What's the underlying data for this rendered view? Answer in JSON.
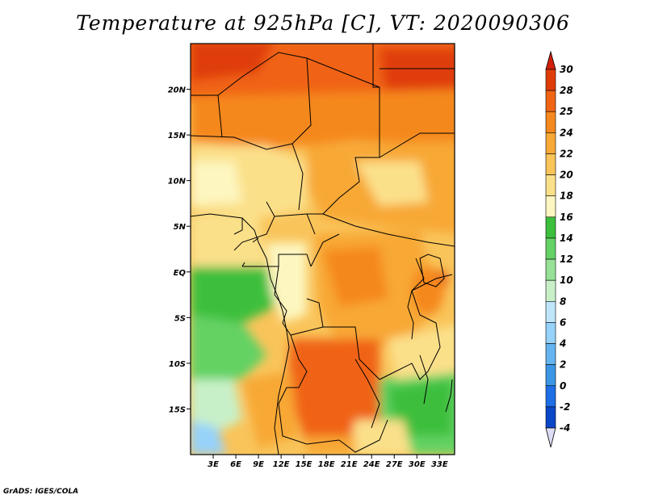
{
  "title": "Temperature at 925hPa [C], VT: 2020090306",
  "credit": "GrADS: IGES/COLA",
  "map": {
    "lat_labels": [
      "20N",
      "15N",
      "10N",
      "5N",
      "EQ",
      "5S",
      "10S",
      "15S"
    ],
    "lat_values": [
      20,
      15,
      10,
      5,
      0,
      -5,
      -10,
      -15
    ],
    "lon_labels": [
      "3E",
      "6E",
      "9E",
      "12E",
      "15E",
      "18E",
      "21E",
      "24E",
      "27E",
      "30E",
      "33E"
    ],
    "lon_values": [
      3,
      6,
      9,
      12,
      15,
      18,
      21,
      24,
      27,
      30,
      33
    ],
    "lon_range": [
      0,
      35
    ],
    "lat_range": [
      -20,
      25
    ]
  },
  "colorbar": {
    "labels": [
      "30",
      "28",
      "25",
      "24",
      "22",
      "20",
      "18",
      "16",
      "14",
      "12",
      "10",
      "8",
      "6",
      "4",
      "2",
      "0",
      "-2",
      "-4"
    ],
    "colors": [
      "#e03c0a",
      "#f06414",
      "#f5881e",
      "#f8a835",
      "#f9c45a",
      "#fbe08a",
      "#fdf6c0",
      "#3cbf3c",
      "#64d264",
      "#96e196",
      "#c8f0c8",
      "#bee6fa",
      "#96d2fa",
      "#64b4f0",
      "#3c96e6",
      "#1e6ee6",
      "#0a46c8",
      "#0a1e96"
    ],
    "top_color": "#d21e0a",
    "bottom_color": "#dcdcf5"
  }
}
